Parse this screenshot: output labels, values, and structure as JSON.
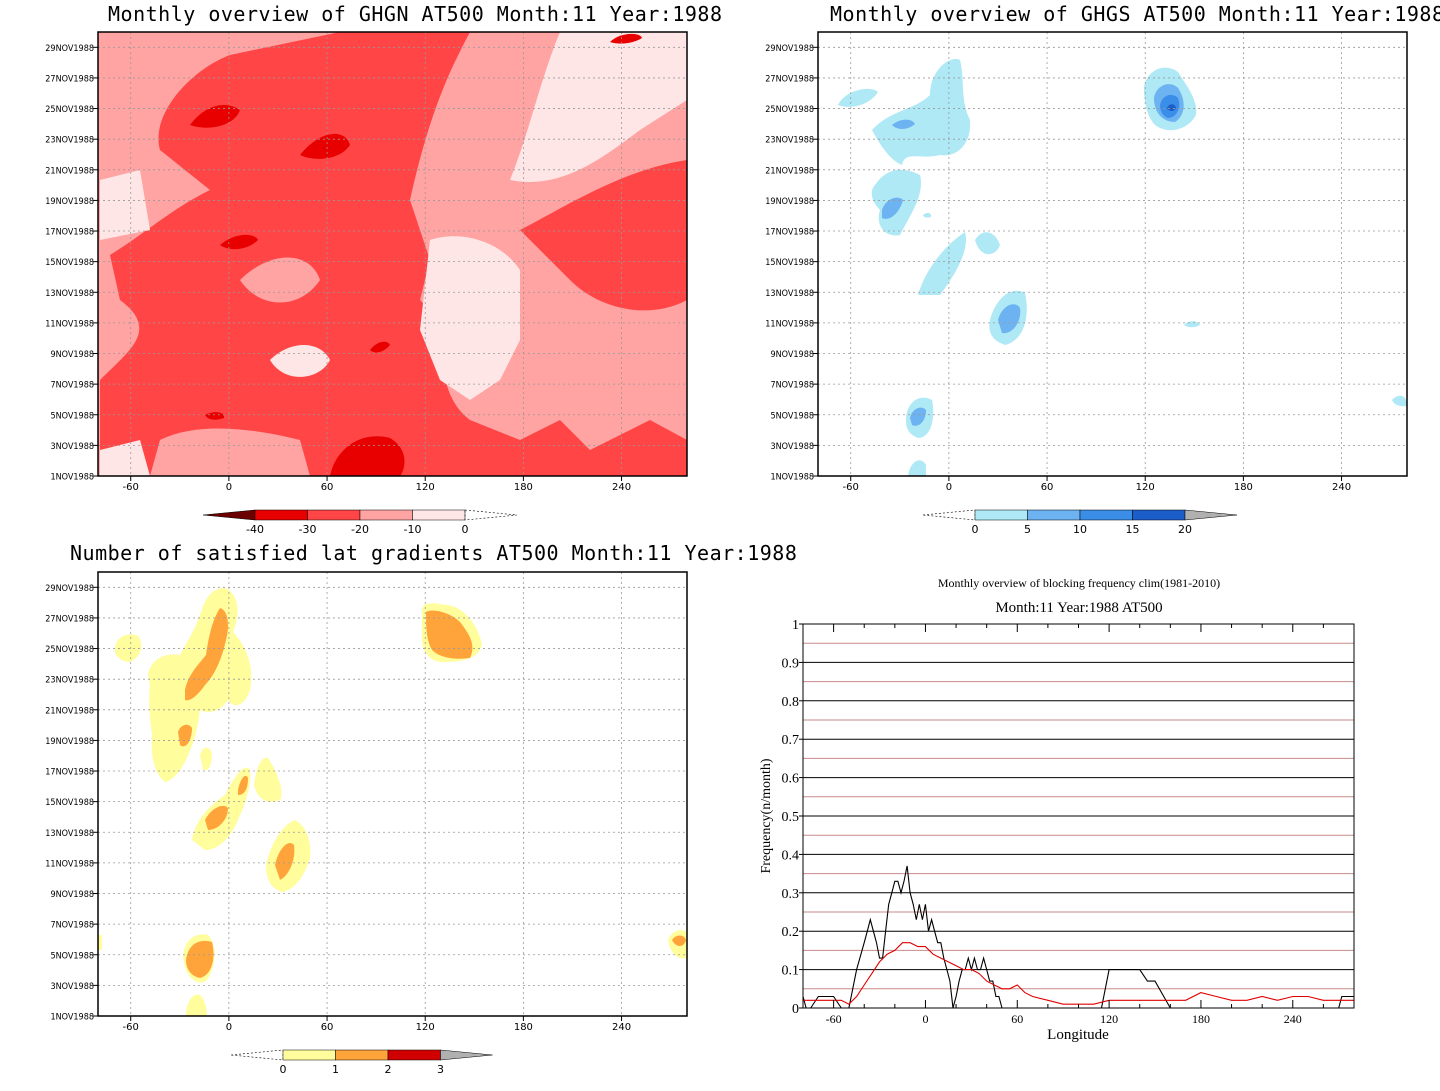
{
  "panels": {
    "ghgn": {
      "title": "Monthly overview of GHGN AT500 Month:11 Year:1988",
      "colorbar_labels": [
        "-40",
        "-30",
        "-20",
        "-10",
        "0"
      ],
      "colorbar_colors": [
        "#6b0000",
        "#e80000",
        "#ff4545",
        "#ffa3a3",
        "#ffe6e6"
      ]
    },
    "ghgs": {
      "title": "Monthly overview of GHGS AT500 Month:11 Year:1988",
      "colorbar_labels": [
        "0",
        "5",
        "10",
        "15",
        "20"
      ],
      "colorbar_colors": [
        "#aee9f5",
        "#6db3f2",
        "#3b8ee8",
        "#1c5ec9",
        "#b0b0b0"
      ]
    },
    "latgrad": {
      "title": "Number of satisfied lat gradients AT500 Month:11 Year:1988",
      "colorbar_labels": [
        "0",
        "1",
        "2",
        "3"
      ],
      "colorbar_colors": [
        "#fffd9c",
        "#ffa43a",
        "#d10000",
        "#b0b0b0"
      ]
    },
    "blocking": {
      "title": "Monthly overview of blocking frequency clim(1981-2010)",
      "subtitle": "Month:11 Year:1988  AT500"
    }
  },
  "map_axes": {
    "x_ticks": [
      -60,
      0,
      60,
      120,
      180,
      240
    ],
    "x_range": [
      -80,
      280
    ],
    "y_ticks": [
      "1NOV1988",
      "3NOV1988",
      "5NOV1988",
      "7NOV1988",
      "9NOV1988",
      "11NOV1988",
      "13NOV1988",
      "15NOV1988",
      "17NOV1988",
      "19NOV1988",
      "21NOV1988",
      "23NOV1988",
      "25NOV1988",
      "27NOV1988",
      "29NOV1988"
    ],
    "y_range": [
      1,
      30
    ]
  },
  "chart_data": {
    "type": "line",
    "title": "Monthly overview of blocking frequency clim(1981-2010)",
    "subtitle": "Month:11 Year:1988  AT500",
    "xlabel": "Longitude",
    "ylabel": "Frequency(n/month)",
    "xlim": [
      -80,
      280
    ],
    "ylim": [
      0,
      1
    ],
    "x_ticks": [
      -60,
      0,
      60,
      120,
      180,
      240
    ],
    "y_ticks": [
      0,
      0.1,
      0.2,
      0.3,
      0.4,
      0.5,
      0.6,
      0.7,
      0.8,
      0.9,
      1
    ],
    "grid": true,
    "series": [
      {
        "color": "#000000",
        "x": [
          -80,
          -78,
          -75,
          -70,
          -60,
          -55,
          -50,
          -45,
          -40,
          -38,
          -36,
          -34,
          -32,
          -30,
          -28,
          -26,
          -24,
          -22,
          -20,
          -18,
          -16,
          -14,
          -12,
          -10,
          -8,
          -6,
          -4,
          -2,
          0,
          2,
          4,
          6,
          8,
          10,
          12,
          14,
          16,
          18,
          20,
          22,
          24,
          26,
          28,
          30,
          32,
          34,
          36,
          38,
          40,
          42,
          44,
          46,
          48,
          50,
          55,
          60,
          65,
          70,
          80,
          90,
          100,
          105,
          110,
          115,
          120,
          125,
          130,
          135,
          140,
          145,
          150,
          160,
          170,
          180,
          200,
          220,
          240,
          260,
          270,
          272,
          275,
          280
        ],
        "y": [
          0.03,
          0.0,
          0.0,
          0.03,
          0.03,
          0.0,
          0.0,
          0.1,
          0.17,
          0.2,
          0.23,
          0.2,
          0.17,
          0.13,
          0.13,
          0.2,
          0.27,
          0.3,
          0.33,
          0.33,
          0.3,
          0.33,
          0.37,
          0.3,
          0.27,
          0.23,
          0.27,
          0.23,
          0.27,
          0.2,
          0.23,
          0.2,
          0.17,
          0.17,
          0.13,
          0.1,
          0.07,
          0.0,
          0.03,
          0.07,
          0.1,
          0.1,
          0.13,
          0.1,
          0.13,
          0.1,
          0.1,
          0.13,
          0.1,
          0.07,
          0.07,
          0.03,
          0.03,
          0.0,
          0.0,
          0.0,
          0.0,
          0.0,
          0.0,
          0.0,
          0.0,
          0.0,
          0.0,
          0.0,
          0.1,
          0.1,
          0.1,
          0.1,
          0.1,
          0.07,
          0.07,
          0.0,
          0.0,
          0.0,
          0.0,
          0.0,
          0.0,
          0.0,
          0.0,
          0.03,
          0.03,
          0.03
        ]
      },
      {
        "color": "#e00000",
        "x": [
          -80,
          -75,
          -70,
          -65,
          -60,
          -55,
          -50,
          -45,
          -40,
          -35,
          -30,
          -25,
          -20,
          -15,
          -10,
          -5,
          0,
          5,
          10,
          15,
          20,
          25,
          30,
          35,
          40,
          45,
          50,
          55,
          60,
          65,
          70,
          80,
          90,
          100,
          110,
          120,
          130,
          140,
          150,
          160,
          170,
          180,
          190,
          200,
          210,
          220,
          230,
          240,
          250,
          260,
          270,
          280
        ],
        "y": [
          0.02,
          0.02,
          0.02,
          0.02,
          0.02,
          0.02,
          0.01,
          0.03,
          0.06,
          0.09,
          0.12,
          0.14,
          0.15,
          0.17,
          0.17,
          0.16,
          0.16,
          0.14,
          0.13,
          0.12,
          0.11,
          0.1,
          0.1,
          0.09,
          0.07,
          0.06,
          0.05,
          0.05,
          0.06,
          0.04,
          0.03,
          0.02,
          0.01,
          0.01,
          0.01,
          0.02,
          0.02,
          0.02,
          0.02,
          0.02,
          0.02,
          0.04,
          0.03,
          0.02,
          0.02,
          0.03,
          0.02,
          0.03,
          0.03,
          0.02,
          0.02,
          0.02
        ]
      }
    ],
    "reference_lines": {
      "color": "#c88b8b",
      "y": [
        0.05,
        0.15,
        0.25,
        0.35,
        0.45,
        0.55,
        0.65,
        0.75,
        0.85,
        0.95
      ]
    }
  }
}
